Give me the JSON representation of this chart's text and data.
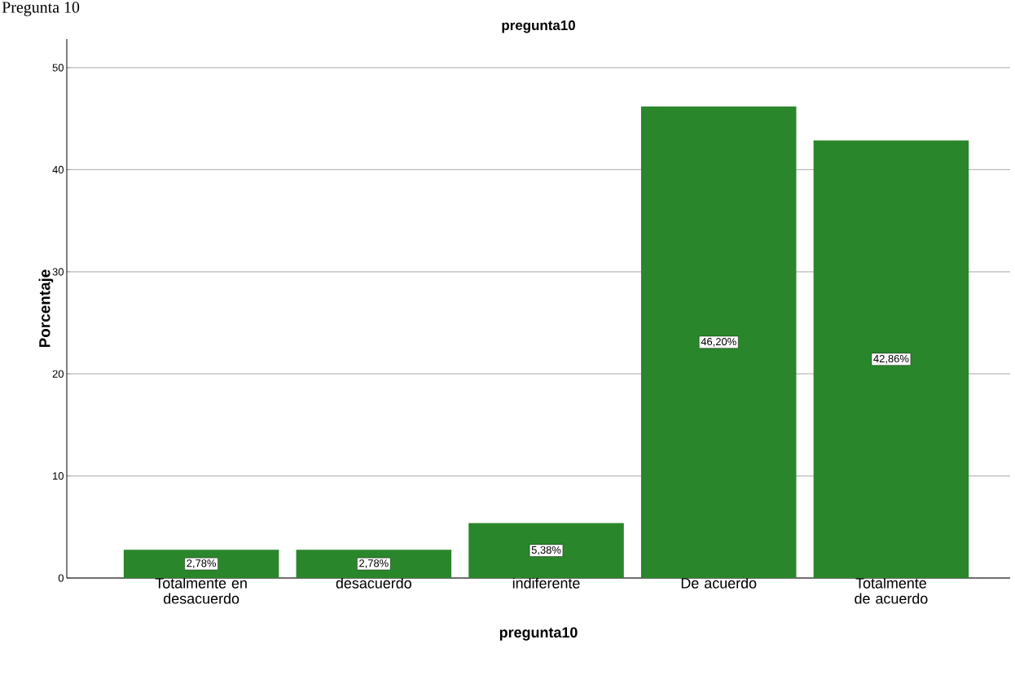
{
  "chart_data": {
    "type": "bar",
    "title": "pregunta10",
    "xlabel": "pregunta10",
    "ylabel": "Porcentaje",
    "annotations": [
      "Pregunta 10"
    ],
    "categories": [
      "Totalmente en desacuerdo",
      "desacuerdo",
      "indiferente",
      "De acuerdo",
      "Totalmente de acuerdo"
    ],
    "values": [
      2.78,
      2.78,
      5.38,
      46.2,
      42.86
    ],
    "value_labels": [
      "2,78%",
      "2,78%",
      "5,38%",
      "46,20%",
      "42,86%"
    ],
    "color": "#2a862a",
    "ylim": [
      0,
      52.8
    ],
    "yticks": [
      0,
      10,
      20,
      30,
      40,
      50
    ],
    "grid": "y"
  }
}
